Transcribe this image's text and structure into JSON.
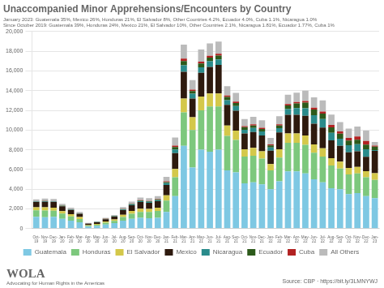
{
  "chart_data": {
    "type": "bar",
    "stacked": true,
    "title": "Unaccompanied Minor Apprehensions/Encounters by Country",
    "subtitle": [
      "January 2023: Guatemala 35%, Mexico 26%, Honduras 21%, El Salvador 8%, Other Countries 4.2%, Ecuador 4.0%, Cuba 1.1%, Nicaragua 1.0%",
      "Since October 2019: Guatemala 39%, Honduras 24%, Mexico 21%, El Salvador 10%, Other Countries 2.1%, Nicaragua 1.81%, Ecuador 1.77%, Cuba 1%"
    ],
    "annotations": [
      "WOLA",
      "Advocating for Human Rights in the Americas",
      "Source: CBP · https://bit.ly/3LMNYWJ"
    ],
    "categories": [
      "Oct-\n19",
      "Nov-\n19",
      "Dec-\n19",
      "Jan-\n20",
      "Feb-\n20",
      "Mar-\n20",
      "Apr-\n20",
      "May-\n20",
      "Jun-\n20",
      "Jul-\n20",
      "Aug-\n20",
      "Sep-\n20",
      "Oct-\n20",
      "Nov-\n20",
      "Dec-\n20",
      "Jan-\n21",
      "Feb-\n21",
      "Mar-\n21",
      "Apr-\n21",
      "May-\n21",
      "Jun-\n21",
      "Jul-\n21",
      "Aug-\n21",
      "Sep-\n21",
      "Oct-\n21",
      "Nov-\n21",
      "Dec-\n21",
      "Jan-\n22",
      "Feb-\n22",
      "Mar-\n22",
      "Apr-\n22",
      "May-\n22",
      "Jun-\n22",
      "Jul-\n22",
      "Aug-\n22",
      "Sep-\n22",
      "Oct-\n22",
      "Nov-\n22",
      "Dec-\n22",
      "Jan-\n23"
    ],
    "series": [
      {
        "name": "Guatemala",
        "color": "#7EC8E3",
        "values": [
          1200,
          1150,
          1200,
          1000,
          800,
          650,
          200,
          280,
          420,
          550,
          800,
          1000,
          1100,
          1050,
          1100,
          1700,
          3300,
          8400,
          6200,
          8000,
          7800,
          8000,
          5900,
          5700,
          4600,
          4700,
          4500,
          4000,
          4800,
          5800,
          5800,
          5600,
          5000,
          4700,
          4100,
          4000,
          3500,
          3600,
          3300,
          3100
        ]
      },
      {
        "name": "Honduras",
        "color": "#7DC87D",
        "values": [
          650,
          680,
          620,
          520,
          430,
          330,
          90,
          110,
          180,
          230,
          380,
          500,
          600,
          650,
          700,
          1150,
          1900,
          3400,
          3800,
          4000,
          4600,
          4400,
          3500,
          3300,
          2700,
          2700,
          2600,
          1900,
          2400,
          2900,
          2900,
          2900,
          2700,
          2600,
          2300,
          2100,
          2000,
          2000,
          1900,
          1850
        ]
      },
      {
        "name": "El Salvador",
        "color": "#D4C84A",
        "values": [
          320,
          330,
          300,
          260,
          230,
          190,
          70,
          80,
          120,
          150,
          230,
          300,
          330,
          300,
          330,
          520,
          850,
          1400,
          1300,
          1400,
          1300,
          1300,
          1050,
          950,
          750,
          800,
          750,
          650,
          850,
          950,
          950,
          950,
          850,
          850,
          750,
          700,
          650,
          650,
          630,
          680
        ]
      },
      {
        "name": "Mexico",
        "color": "#2E1A0E",
        "values": [
          520,
          570,
          570,
          480,
          430,
          330,
          140,
          180,
          230,
          280,
          470,
          570,
          660,
          620,
          660,
          1050,
          1600,
          2700,
          1900,
          2400,
          2700,
          2900,
          2100,
          2000,
          1600,
          1600,
          1600,
          1350,
          1700,
          1900,
          1900,
          2000,
          2100,
          2100,
          1800,
          1600,
          1600,
          1600,
          1450,
          2250
        ]
      },
      {
        "name": "Nicaragua",
        "color": "#2A8B8B",
        "values": [
          45,
          45,
          45,
          38,
          38,
          28,
          13,
          18,
          28,
          38,
          55,
          75,
          95,
          95,
          105,
          190,
          380,
          670,
          480,
          570,
          570,
          570,
          480,
          480,
          380,
          400,
          400,
          335,
          430,
          570,
          670,
          760,
          860,
          860,
          760,
          710,
          710,
          710,
          760,
          95
        ]
      },
      {
        "name": "Ecuador",
        "color": "#2D5A1B",
        "values": [
          28,
          28,
          28,
          22,
          22,
          18,
          9,
          10,
          18,
          22,
          38,
          47,
          57,
          57,
          66,
          114,
          240,
          430,
          285,
          380,
          380,
          380,
          330,
          315,
          257,
          266,
          266,
          210,
          285,
          380,
          475,
          570,
          570,
          570,
          570,
          523,
          475,
          456,
          475,
          350
        ]
      },
      {
        "name": "Cuba",
        "color": "#B22222",
        "values": [
          18,
          18,
          16,
          13,
          13,
          11,
          7,
          9,
          11,
          13,
          23,
          28,
          38,
          38,
          43,
          76,
          145,
          240,
          143,
          190,
          190,
          190,
          143,
          133,
          114,
          114,
          114,
          95,
          124,
          143,
          143,
          162,
          190,
          190,
          238,
          219,
          266,
          333,
          380,
          95
        ]
      },
      {
        "name": "All Others",
        "color": "#BBBBBB",
        "values": [
          180,
          230,
          230,
          185,
          165,
          130,
          55,
          65,
          92,
          110,
          185,
          230,
          275,
          275,
          295,
          460,
          830,
          1430,
          950,
          1240,
          1240,
          1240,
          950,
          900,
          713,
          760,
          760,
          665,
          808,
          950,
          950,
          1045,
          1045,
          1140,
          1045,
          950,
          950,
          998,
          1045,
          360
        ]
      }
    ],
    "ylim": [
      0,
      20000
    ],
    "yticks": [
      0,
      {
        "value": 2000,
        "label": "2,000"
      },
      {
        "value": 4000,
        "label": "4,000"
      },
      {
        "value": 6000,
        "label": "6,000"
      },
      {
        "value": 8000,
        "label": "8,000"
      },
      {
        "value": 10000,
        "label": "10,000"
      },
      {
        "value": 12000,
        "label": "12,000"
      },
      {
        "value": 14000,
        "label": "14,000"
      },
      {
        "value": 16000,
        "label": "16,000"
      },
      {
        "value": 18000,
        "label": "18,000"
      },
      {
        "value": 20000,
        "label": "20,000"
      }
    ],
    "grid": true,
    "legend": "bottom"
  }
}
